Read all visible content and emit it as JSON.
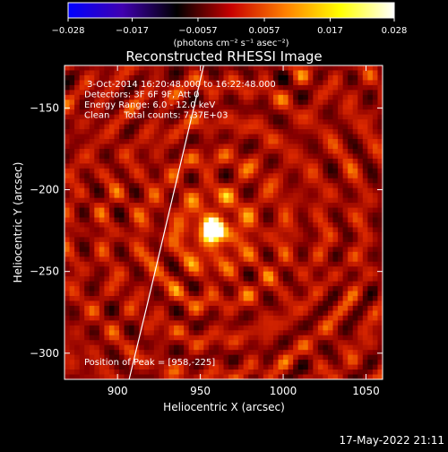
{
  "chart_data": {
    "type": "heatmap",
    "title": "Reconstructed RHESSI Image",
    "xlabel": "Heliocentric X (arcsec)",
    "ylabel": "Heliocentric Y (arcsec)",
    "xlim": [
      868,
      1060
    ],
    "ylim": [
      -316,
      -124
    ],
    "x_ticks": [
      900,
      950,
      1000,
      1050
    ],
    "y_ticks": [
      -150,
      -200,
      -250,
      -300
    ],
    "x_tick_labels": [
      "900",
      "950",
      "1000",
      "1050"
    ],
    "y_tick_labels": [
      "−150",
      "−200",
      "−250",
      "−300"
    ],
    "colorbar": {
      "range": [
        -0.028,
        0.028
      ],
      "ticks": [
        -0.028,
        -0.017,
        -0.0057,
        0.0057,
        0.017,
        0.028
      ],
      "tick_labels": [
        "−0.028",
        "−0.017",
        "−0.0057",
        "0.0057",
        "0.017",
        "0.028"
      ],
      "label": "(photons cm⁻² s⁻¹ asec⁻²)",
      "colors": [
        "#0000ff",
        "#4000b0",
        "#000000",
        "#c80000",
        "#ff8000",
        "#ffff00",
        "#ffffff"
      ]
    },
    "peak": {
      "x": 958,
      "y": -225
    },
    "limb_line": [
      [
        907,
        -316
      ],
      [
        918,
        -270
      ],
      [
        932,
        -210
      ],
      [
        946,
        -150
      ],
      [
        952,
        -124
      ]
    ],
    "annotations": [
      " 3-Oct-2014 16:20:48.000 to 16:22:48.000",
      "Detectors: 3F 6F 9F, Att 0",
      "Energy Range: 6.0 - 12.0 keV",
      "Clean     Total counts: 7.37E+03"
    ],
    "peak_label": "Position of Peak = [958,-225]"
  },
  "footer": {
    "timestamp": "17-May-2022 21:11"
  }
}
